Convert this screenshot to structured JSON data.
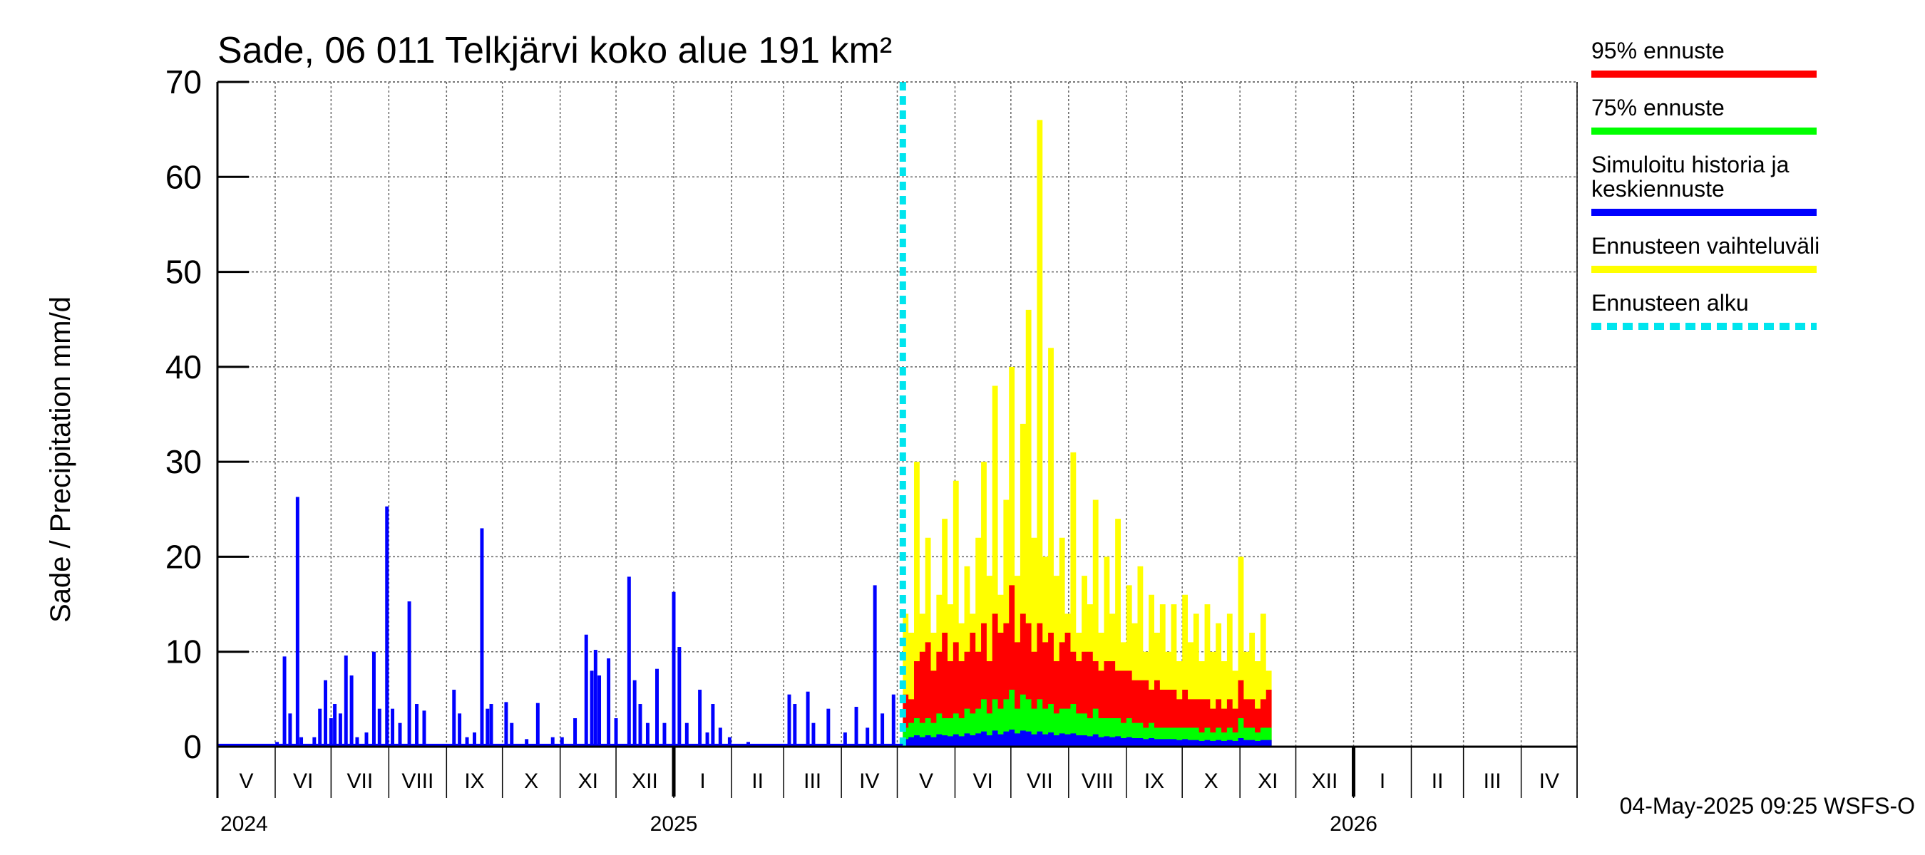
{
  "chart_data": {
    "type": "bar",
    "title": "Sade, 06 011 Telkjärvi koko alue 191 km²",
    "ylabel": "Sade / Precipitation   mm/d",
    "ylim": [
      0,
      70
    ],
    "yticks": [
      "0",
      "10",
      "20",
      "30",
      "40",
      "50",
      "60",
      "70"
    ],
    "x_start": "2024-05-01",
    "x_end": "2026-05-01",
    "forecast_start": "2025-05-04",
    "months": [
      "V",
      "VI",
      "VII",
      "VIII",
      "IX",
      "X",
      "XI",
      "XII",
      "I",
      "II",
      "III",
      "IV",
      "V",
      "VI",
      "VII",
      "VIII",
      "IX",
      "X",
      "XI",
      "XII",
      "I",
      "II",
      "III",
      "IV"
    ],
    "years": [
      "2024",
      "2025",
      "2026"
    ],
    "series": [
      {
        "name": "Simuloitu historia ja keskiennuste",
        "color": "#0000ff",
        "points": [
          [
            "2024-06-02",
            0.5
          ],
          [
            "2024-06-06",
            9.5
          ],
          [
            "2024-06-09",
            3.5
          ],
          [
            "2024-06-13",
            26.3
          ],
          [
            "2024-06-15",
            1.0
          ],
          [
            "2024-06-22",
            1.0
          ],
          [
            "2024-06-25",
            4.0
          ],
          [
            "2024-06-28",
            7.0
          ],
          [
            "2024-07-01",
            3.0
          ],
          [
            "2024-07-03",
            4.5
          ],
          [
            "2024-07-06",
            3.5
          ],
          [
            "2024-07-09",
            9.6
          ],
          [
            "2024-07-12",
            7.5
          ],
          [
            "2024-07-15",
            1.0
          ],
          [
            "2024-07-20",
            1.5
          ],
          [
            "2024-07-24",
            10.0
          ],
          [
            "2024-07-27",
            4.0
          ],
          [
            "2024-07-31",
            25.3
          ],
          [
            "2024-08-03",
            4.0
          ],
          [
            "2024-08-07",
            2.5
          ],
          [
            "2024-08-12",
            15.3
          ],
          [
            "2024-08-16",
            4.5
          ],
          [
            "2024-08-20",
            3.8
          ],
          [
            "2024-09-05",
            6.0
          ],
          [
            "2024-09-08",
            3.5
          ],
          [
            "2024-09-12",
            1.0
          ],
          [
            "2024-09-16",
            1.5
          ],
          [
            "2024-09-20",
            23.0
          ],
          [
            "2024-09-23",
            4.0
          ],
          [
            "2024-09-25",
            4.5
          ],
          [
            "2024-10-03",
            4.7
          ],
          [
            "2024-10-06",
            2.5
          ],
          [
            "2024-10-14",
            0.8
          ],
          [
            "2024-10-20",
            4.6
          ],
          [
            "2024-10-28",
            1.0
          ],
          [
            "2024-11-02",
            1.0
          ],
          [
            "2024-11-09",
            3.0
          ],
          [
            "2024-11-15",
            11.8
          ],
          [
            "2024-11-18",
            8.0
          ],
          [
            "2024-11-20",
            10.2
          ],
          [
            "2024-11-22",
            7.5
          ],
          [
            "2024-11-27",
            9.3
          ],
          [
            "2024-12-01",
            3.0
          ],
          [
            "2024-12-08",
            17.9
          ],
          [
            "2024-12-11",
            7.0
          ],
          [
            "2024-12-14",
            4.5
          ],
          [
            "2024-12-18",
            2.5
          ],
          [
            "2024-12-23",
            8.2
          ],
          [
            "2024-12-27",
            2.5
          ],
          [
            "2025-01-01",
            16.3
          ],
          [
            "2025-01-04",
            10.5
          ],
          [
            "2025-01-08",
            2.5
          ],
          [
            "2025-01-15",
            6.0
          ],
          [
            "2025-01-19",
            1.5
          ],
          [
            "2025-01-22",
            4.5
          ],
          [
            "2025-01-26",
            2.0
          ],
          [
            "2025-01-31",
            1.0
          ],
          [
            "2025-02-10",
            0.5
          ],
          [
            "2025-03-04",
            5.5
          ],
          [
            "2025-03-07",
            4.5
          ],
          [
            "2025-03-14",
            5.8
          ],
          [
            "2025-03-17",
            2.5
          ],
          [
            "2025-03-25",
            4.0
          ],
          [
            "2025-04-03",
            1.5
          ],
          [
            "2025-04-09",
            4.2
          ],
          [
            "2025-04-15",
            2.0
          ],
          [
            "2025-04-19",
            17.0
          ],
          [
            "2025-04-23",
            3.5
          ],
          [
            "2025-04-29",
            5.5
          ]
        ]
      }
    ],
    "forecast_envelope": {
      "step_days": 3,
      "yellow_max": [
        14,
        12,
        30,
        14,
        22,
        12,
        16,
        24,
        15,
        28,
        13,
        19,
        14,
        22,
        30,
        18,
        38,
        16,
        26,
        40,
        18,
        34,
        46,
        22,
        66,
        20,
        42,
        18,
        22,
        14,
        31,
        12,
        18,
        15,
        26,
        12,
        20,
        14,
        24,
        11,
        17,
        13,
        19,
        10,
        16,
        12,
        15,
        10,
        15,
        9,
        16,
        11,
        14,
        9,
        15,
        10,
        13,
        9,
        14,
        8,
        20,
        10,
        12,
        9,
        14,
        8
      ],
      "red_95": [
        5.5,
        5,
        9,
        10,
        11,
        8,
        10,
        12,
        9,
        11,
        9,
        10,
        12,
        10,
        13,
        9,
        14,
        12,
        13,
        17,
        11,
        14,
        13,
        10,
        13,
        11,
        12,
        9,
        11,
        12,
        10,
        9,
        10,
        10,
        9,
        8,
        9,
        9,
        8,
        8,
        8,
        7,
        7,
        7,
        6,
        7,
        6,
        6,
        6,
        5,
        6,
        5,
        5,
        5,
        5,
        4,
        5,
        4,
        5,
        4,
        7,
        5,
        5,
        4,
        5,
        6
      ],
      "green_75": [
        2,
        2.5,
        3,
        2.5,
        3,
        2.5,
        3.5,
        3,
        3,
        3.5,
        3,
        4,
        3.5,
        4,
        5,
        3.5,
        5,
        4,
        5,
        6,
        4,
        5.5,
        5,
        4,
        5,
        4,
        4.5,
        3.5,
        4,
        4,
        4.5,
        3.5,
        3.5,
        3,
        4,
        3,
        3,
        3,
        3,
        2.5,
        3,
        2.5,
        2.5,
        2,
        2.5,
        2,
        2,
        2,
        2,
        2,
        2,
        2,
        2,
        1.5,
        2,
        1.5,
        2,
        1.5,
        2,
        1.5,
        3,
        2,
        2,
        1.5,
        2,
        2
      ],
      "blue_mean": [
        0.8,
        1,
        1.2,
        1,
        1.2,
        1,
        1.3,
        1.2,
        1.1,
        1.3,
        1.1,
        1.4,
        1.2,
        1.4,
        1.6,
        1.2,
        1.7,
        1.3,
        1.6,
        1.8,
        1.4,
        1.7,
        1.6,
        1.3,
        1.6,
        1.3,
        1.5,
        1.2,
        1.4,
        1.3,
        1.4,
        1.2,
        1.2,
        1.1,
        1.3,
        1,
        1.1,
        1,
        1.1,
        0.9,
        1,
        0.9,
        0.9,
        0.8,
        0.9,
        0.8,
        0.8,
        0.8,
        0.8,
        0.7,
        0.8,
        0.7,
        0.7,
        0.6,
        0.7,
        0.6,
        0.7,
        0.6,
        0.7,
        0.6,
        0.9,
        0.7,
        0.7,
        0.6,
        0.7,
        0.7
      ]
    },
    "legend": [
      {
        "label": "95% ennuste",
        "color": "#ff0000",
        "style": "solid"
      },
      {
        "label": "75% ennuste",
        "color": "#00ff00",
        "style": "solid"
      },
      {
        "label": "Simuloitu historia ja",
        "label2": "keskiennuste",
        "color": "#0000ff",
        "style": "solid"
      },
      {
        "label": "Ennusteen vaihteluväli",
        "color": "#ffff00",
        "style": "solid"
      },
      {
        "label": "Ennusteen alku",
        "color": "#00e5ee",
        "style": "dashed"
      }
    ],
    "legend_position": "right",
    "grid": true,
    "footer": "04-May-2025 09:25 WSFS-O"
  }
}
